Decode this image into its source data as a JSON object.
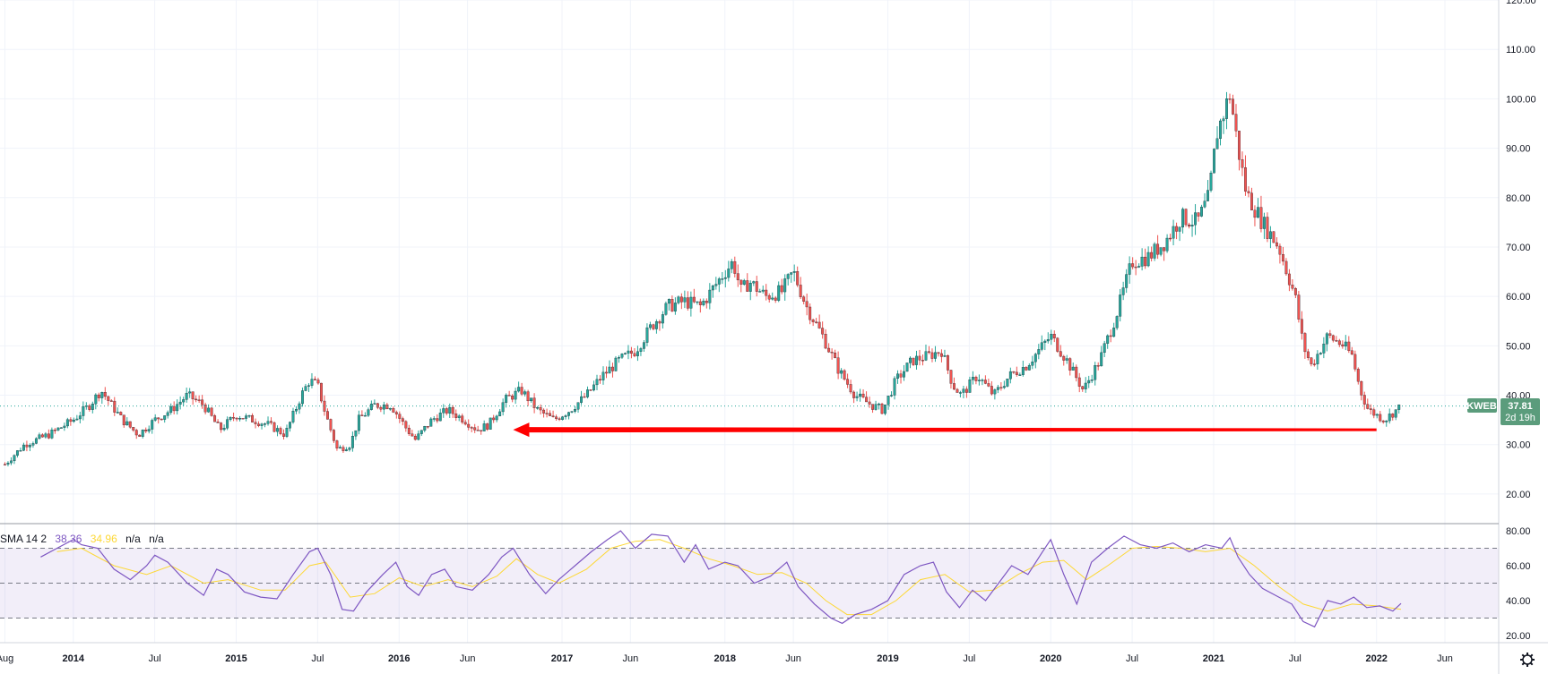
{
  "chart_data": {
    "type": "candlestick",
    "symbol": "KWEB",
    "last_price": "37.81",
    "countdown": "2d 19h",
    "price_axis": {
      "min": 14,
      "max": 120,
      "ticks": [
        20,
        30,
        40,
        50,
        60,
        70,
        80,
        90,
        100,
        110,
        120
      ],
      "tick_labels": [
        "20.00",
        "30.00",
        "40.00",
        "50.00",
        "60.00",
        "70.00",
        "80.00",
        "90.00",
        "100.00",
        "110.00",
        "120.00"
      ]
    },
    "time_axis": {
      "labels": [
        "Aug",
        "2014",
        "Jul",
        "2015",
        "Jul",
        "2016",
        "Jun",
        "2017",
        "Jun",
        "2018",
        "Jun",
        "2019",
        "Jul",
        "2020",
        "Jul",
        "2021",
        "Jul",
        "2022",
        "Jun"
      ],
      "bold": [
        false,
        true,
        false,
        true,
        false,
        true,
        false,
        true,
        false,
        true,
        false,
        true,
        false,
        true,
        false,
        true,
        false,
        true,
        false
      ],
      "dates": [
        2013.58,
        2014.0,
        2014.5,
        2015.0,
        2015.5,
        2016.0,
        2016.42,
        2017.0,
        2017.42,
        2018.0,
        2018.42,
        2019.0,
        2019.5,
        2020.0,
        2020.5,
        2021.0,
        2021.5,
        2022.0,
        2022.42
      ],
      "start": 2013.55,
      "end": 2022.75
    },
    "weekly_close_path": [
      [
        2013.58,
        26
      ],
      [
        2013.7,
        30
      ],
      [
        2013.85,
        32
      ],
      [
        2014.0,
        35
      ],
      [
        2014.1,
        38
      ],
      [
        2014.17,
        41
      ],
      [
        2014.3,
        35
      ],
      [
        2014.4,
        32
      ],
      [
        2014.5,
        35
      ],
      [
        2014.6,
        37
      ],
      [
        2014.7,
        40
      ],
      [
        2014.8,
        38
      ],
      [
        2014.9,
        33
      ],
      [
        2015.0,
        36
      ],
      [
        2015.1,
        35
      ],
      [
        2015.2,
        34
      ],
      [
        2015.3,
        32
      ],
      [
        2015.4,
        40
      ],
      [
        2015.45,
        43
      ],
      [
        2015.5,
        42
      ],
      [
        2015.55,
        36
      ],
      [
        2015.62,
        29
      ],
      [
        2015.7,
        30
      ],
      [
        2015.75,
        35
      ],
      [
        2015.85,
        38
      ],
      [
        2015.95,
        38
      ],
      [
        2016.05,
        33
      ],
      [
        2016.1,
        31
      ],
      [
        2016.2,
        35
      ],
      [
        2016.3,
        37
      ],
      [
        2016.4,
        35
      ],
      [
        2016.48,
        33
      ],
      [
        2016.55,
        34
      ],
      [
        2016.65,
        39
      ],
      [
        2016.75,
        41
      ],
      [
        2016.85,
        37
      ],
      [
        2016.95,
        35
      ],
      [
        2017.05,
        37
      ],
      [
        2017.15,
        40
      ],
      [
        2017.25,
        44
      ],
      [
        2017.35,
        47
      ],
      [
        2017.45,
        49
      ],
      [
        2017.55,
        54
      ],
      [
        2017.65,
        58
      ],
      [
        2017.75,
        59
      ],
      [
        2017.85,
        58
      ],
      [
        2018.0,
        65
      ],
      [
        2018.05,
        67
      ],
      [
        2018.1,
        61
      ],
      [
        2018.15,
        63
      ],
      [
        2018.25,
        60
      ],
      [
        2018.35,
        61
      ],
      [
        2018.42,
        65
      ],
      [
        2018.5,
        58
      ],
      [
        2018.6,
        52
      ],
      [
        2018.7,
        45
      ],
      [
        2018.8,
        40
      ],
      [
        2018.9,
        38
      ],
      [
        2018.97,
        37
      ],
      [
        2019.05,
        43
      ],
      [
        2019.15,
        47
      ],
      [
        2019.25,
        48
      ],
      [
        2019.33,
        49
      ],
      [
        2019.4,
        42
      ],
      [
        2019.45,
        40
      ],
      [
        2019.55,
        44
      ],
      [
        2019.65,
        40
      ],
      [
        2019.75,
        44
      ],
      [
        2019.85,
        46
      ],
      [
        2019.95,
        50
      ],
      [
        2020.0,
        52
      ],
      [
        2020.1,
        47
      ],
      [
        2020.2,
        41
      ],
      [
        2020.3,
        47
      ],
      [
        2020.4,
        56
      ],
      [
        2020.5,
        67
      ],
      [
        2020.6,
        68
      ],
      [
        2020.7,
        71
      ],
      [
        2020.8,
        76
      ],
      [
        2020.9,
        75
      ],
      [
        2020.97,
        80
      ],
      [
        2021.02,
        93
      ],
      [
        2021.1,
        101
      ],
      [
        2021.15,
        90
      ],
      [
        2021.2,
        81
      ],
      [
        2021.3,
        75
      ],
      [
        2021.4,
        70
      ],
      [
        2021.5,
        60
      ],
      [
        2021.55,
        50
      ],
      [
        2021.6,
        46
      ],
      [
        2021.7,
        52
      ],
      [
        2021.8,
        50
      ],
      [
        2021.85,
        48
      ],
      [
        2021.9,
        41
      ],
      [
        2021.95,
        37
      ],
      [
        2022.05,
        35
      ],
      [
        2022.15,
        37.81
      ]
    ],
    "annotation": {
      "type": "arrow",
      "color": "#ff0000",
      "from": [
        2022.0,
        33
      ],
      "to": [
        2016.7,
        33
      ]
    },
    "indicator": {
      "name": "RSI",
      "legend_label": "SMA 14 2",
      "rsi_value": "38.36",
      "ma_value": "34.96",
      "na1": "n/a",
      "na2": "n/a",
      "ticks": [
        20,
        40,
        60,
        80
      ],
      "tick_labels": [
        "20.00",
        "40.00",
        "60.00",
        "80.00"
      ],
      "bands": {
        "upper": 70,
        "middle": 50,
        "lower": 30
      },
      "rsi_series": [
        [
          2013.8,
          65
        ],
        [
          2013.9,
          70
        ],
        [
          2014.0,
          75
        ],
        [
          2014.05,
          72
        ],
        [
          2014.15,
          70
        ],
        [
          2014.25,
          58
        ],
        [
          2014.35,
          52
        ],
        [
          2014.45,
          60
        ],
        [
          2014.5,
          66
        ],
        [
          2014.58,
          62
        ],
        [
          2014.7,
          50
        ],
        [
          2014.8,
          43
        ],
        [
          2014.88,
          58
        ],
        [
          2014.95,
          55
        ],
        [
          2015.05,
          45
        ],
        [
          2015.15,
          42
        ],
        [
          2015.25,
          41
        ],
        [
          2015.35,
          55
        ],
        [
          2015.45,
          68
        ],
        [
          2015.5,
          70
        ],
        [
          2015.58,
          55
        ],
        [
          2015.65,
          35
        ],
        [
          2015.72,
          34
        ],
        [
          2015.8,
          45
        ],
        [
          2015.9,
          55
        ],
        [
          2015.98,
          62
        ],
        [
          2016.05,
          48
        ],
        [
          2016.12,
          43
        ],
        [
          2016.2,
          55
        ],
        [
          2016.28,
          58
        ],
        [
          2016.35,
          48
        ],
        [
          2016.45,
          46
        ],
        [
          2016.55,
          55
        ],
        [
          2016.63,
          65
        ],
        [
          2016.7,
          70
        ],
        [
          2016.8,
          55
        ],
        [
          2016.9,
          44
        ],
        [
          2016.98,
          52
        ],
        [
          2017.08,
          60
        ],
        [
          2017.18,
          68
        ],
        [
          2017.28,
          75
        ],
        [
          2017.36,
          80
        ],
        [
          2017.45,
          70
        ],
        [
          2017.55,
          78
        ],
        [
          2017.65,
          77
        ],
        [
          2017.75,
          62
        ],
        [
          2017.82,
          72
        ],
        [
          2017.9,
          58
        ],
        [
          2018.0,
          62
        ],
        [
          2018.08,
          60
        ],
        [
          2018.18,
          50
        ],
        [
          2018.28,
          54
        ],
        [
          2018.38,
          62
        ],
        [
          2018.45,
          48
        ],
        [
          2018.55,
          38
        ],
        [
          2018.65,
          30
        ],
        [
          2018.72,
          27
        ],
        [
          2018.8,
          32
        ],
        [
          2018.9,
          35
        ],
        [
          2019.0,
          40
        ],
        [
          2019.1,
          55
        ],
        [
          2019.2,
          60
        ],
        [
          2019.28,
          62
        ],
        [
          2019.36,
          45
        ],
        [
          2019.44,
          36
        ],
        [
          2019.52,
          46
        ],
        [
          2019.6,
          40
        ],
        [
          2019.68,
          50
        ],
        [
          2019.76,
          60
        ],
        [
          2019.86,
          55
        ],
        [
          2019.95,
          68
        ],
        [
          2020.0,
          75
        ],
        [
          2020.08,
          55
        ],
        [
          2020.16,
          38
        ],
        [
          2020.25,
          62
        ],
        [
          2020.35,
          70
        ],
        [
          2020.45,
          77
        ],
        [
          2020.55,
          72
        ],
        [
          2020.65,
          70
        ],
        [
          2020.75,
          73
        ],
        [
          2020.85,
          68
        ],
        [
          2020.95,
          72
        ],
        [
          2021.05,
          70
        ],
        [
          2021.1,
          76
        ],
        [
          2021.15,
          65
        ],
        [
          2021.22,
          55
        ],
        [
          2021.3,
          47
        ],
        [
          2021.4,
          42
        ],
        [
          2021.48,
          38
        ],
        [
          2021.55,
          28
        ],
        [
          2021.62,
          25
        ],
        [
          2021.7,
          40
        ],
        [
          2021.78,
          38
        ],
        [
          2021.86,
          42
        ],
        [
          2021.94,
          36
        ],
        [
          2022.02,
          37
        ],
        [
          2022.1,
          34
        ],
        [
          2022.15,
          38.36
        ]
      ],
      "ma_series": [
        [
          2013.9,
          68
        ],
        [
          2014.05,
          70
        ],
        [
          2014.25,
          60
        ],
        [
          2014.45,
          55
        ],
        [
          2014.6,
          60
        ],
        [
          2014.8,
          50
        ],
        [
          2014.95,
          52
        ],
        [
          2015.15,
          46
        ],
        [
          2015.3,
          46
        ],
        [
          2015.45,
          60
        ],
        [
          2015.55,
          62
        ],
        [
          2015.7,
          42
        ],
        [
          2015.85,
          44
        ],
        [
          2016.0,
          53
        ],
        [
          2016.15,
          48
        ],
        [
          2016.3,
          52
        ],
        [
          2016.45,
          48
        ],
        [
          2016.6,
          54
        ],
        [
          2016.72,
          64
        ],
        [
          2016.85,
          55
        ],
        [
          2016.98,
          50
        ],
        [
          2017.15,
          58
        ],
        [
          2017.3,
          70
        ],
        [
          2017.45,
          74
        ],
        [
          2017.6,
          75
        ],
        [
          2017.75,
          70
        ],
        [
          2017.9,
          64
        ],
        [
          2018.05,
          60
        ],
        [
          2018.2,
          55
        ],
        [
          2018.35,
          56
        ],
        [
          2018.5,
          50
        ],
        [
          2018.62,
          40
        ],
        [
          2018.75,
          32
        ],
        [
          2018.9,
          32
        ],
        [
          2019.05,
          40
        ],
        [
          2019.2,
          52
        ],
        [
          2019.35,
          55
        ],
        [
          2019.5,
          45
        ],
        [
          2019.65,
          46
        ],
        [
          2019.8,
          55
        ],
        [
          2019.95,
          62
        ],
        [
          2020.08,
          63
        ],
        [
          2020.22,
          52
        ],
        [
          2020.35,
          60
        ],
        [
          2020.5,
          70
        ],
        [
          2020.65,
          71
        ],
        [
          2020.8,
          70
        ],
        [
          2020.95,
          68
        ],
        [
          2021.1,
          70
        ],
        [
          2021.25,
          60
        ],
        [
          2021.4,
          48
        ],
        [
          2021.55,
          38
        ],
        [
          2021.7,
          34
        ],
        [
          2021.85,
          38
        ],
        [
          2022.0,
          37
        ],
        [
          2022.15,
          34.96
        ]
      ]
    }
  },
  "ui": {
    "settings_icon": "gear-icon",
    "colors": {
      "up": "#26a69a",
      "down": "#ef5350",
      "rsi": "#7e57c2",
      "rsi_ma": "#fdd835",
      "arrow": "#ff0000",
      "label_bg": "#5b9c7c"
    }
  }
}
